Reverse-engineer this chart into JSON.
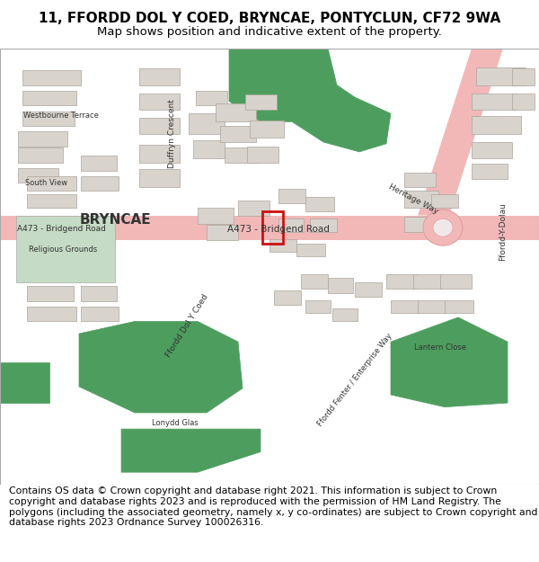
{
  "title_line1": "11, FFORDD DOL Y COED, BRYNCAE, PONTYCLUN, CF72 9WA",
  "title_line2": "Map shows position and indicative extent of the property.",
  "footer": "Contains OS data © Crown copyright and database right 2021. This information is subject to Crown copyright and database rights 2023 and is reproduced with the permission of HM Land Registry. The polygons (including the associated geometry, namely x, y co-ordinates) are subject to Crown copyright and database rights 2023 Ordnance Survey 100026316.",
  "title_fontsize": 11,
  "subtitle_fontsize": 9.5,
  "footer_fontsize": 7.8,
  "bg_color": "#ffffff",
  "map_bg": "#efefef",
  "road_main_color": "#f2b8b8",
  "road_minor_color": "#ffffff",
  "building_face": "#d8d4cd",
  "building_edge": "#aaa49c",
  "green_dark": "#4d9e5e",
  "green_light": "#c5dbc5",
  "property_color": "#cc1111",
  "text_color": "#333333"
}
